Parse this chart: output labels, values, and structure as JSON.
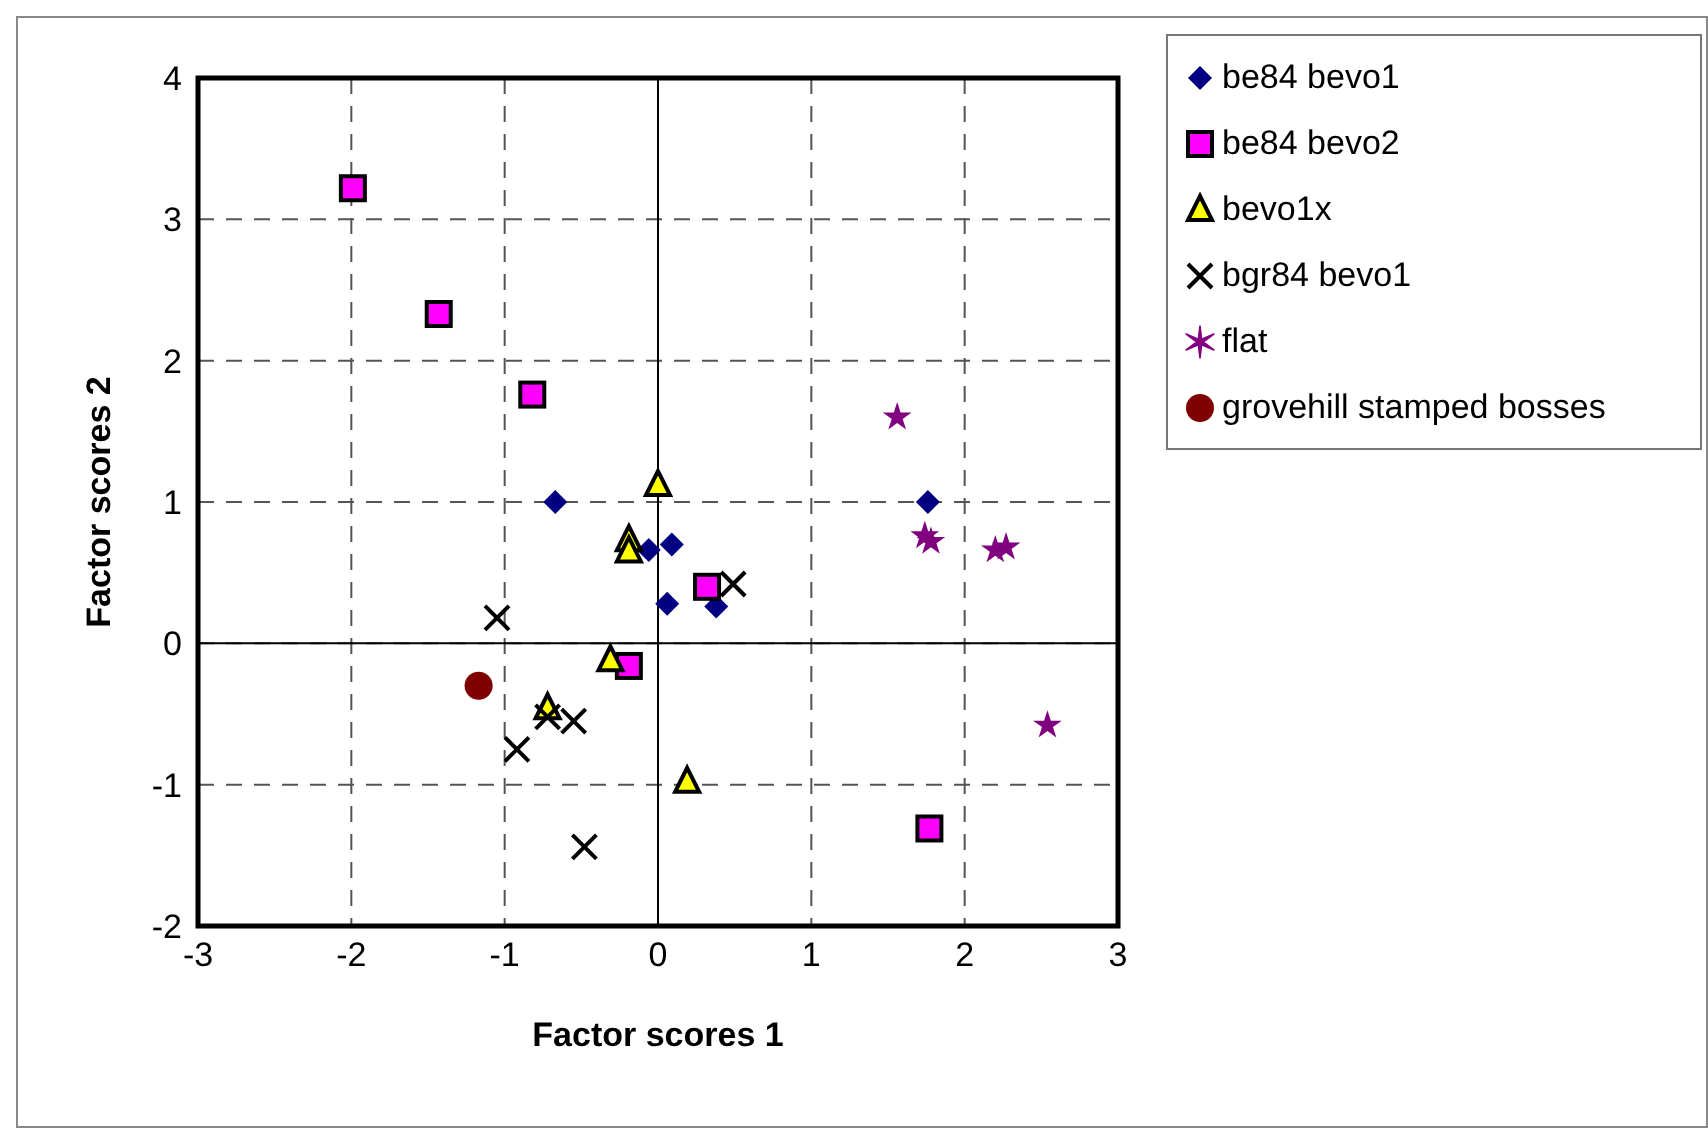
{
  "chart_data": {
    "type": "scatter",
    "xlabel": "Factor scores 1",
    "ylabel": "Factor scores 2",
    "xlim": [
      -3,
      3
    ],
    "ylim": [
      -2,
      4
    ],
    "xticks": [
      -3,
      -2,
      -1,
      0,
      1,
      2,
      3
    ],
    "yticks": [
      -2,
      -1,
      0,
      1,
      2,
      3,
      4
    ],
    "grid": true,
    "legend": "top right",
    "series": [
      {
        "name": "be84 bevo1",
        "color": "#000080",
        "marker": "diamond",
        "x": [
          -0.67,
          1.76,
          -0.06,
          0.09,
          0.06,
          0.38
        ],
        "values": [
          1.0,
          1.0,
          0.66,
          0.7,
          0.28,
          0.26
        ]
      },
      {
        "name": "be84 bevo2",
        "color": "#ff00ff",
        "marker": "square",
        "x": [
          -1.99,
          -1.43,
          -0.82,
          0.32,
          -0.19,
          1.77
        ],
        "values": [
          3.22,
          2.33,
          1.76,
          0.4,
          -0.16,
          -1.31
        ]
      },
      {
        "name": "bevo1x",
        "color": "#ffff00",
        "marker": "triangle",
        "x": [
          0.0,
          -0.19,
          -0.19,
          -0.31,
          -0.72,
          0.19
        ],
        "values": [
          1.12,
          0.73,
          0.65,
          -0.12,
          -0.46,
          -0.98
        ]
      },
      {
        "name": "bgr84 bevo1",
        "color": "#000000",
        "marker": "cross",
        "x": [
          -1.05,
          0.49,
          -0.92,
          -0.72,
          -0.55,
          -0.48
        ],
        "values": [
          0.18,
          0.42,
          -0.75,
          -0.52,
          -0.55,
          -1.44
        ]
      },
      {
        "name": "flat",
        "color": "#800080",
        "marker": "star",
        "x": [
          1.56,
          1.74,
          1.78,
          2.2,
          2.27,
          2.54
        ],
        "values": [
          1.6,
          0.76,
          0.72,
          0.66,
          0.68,
          -0.58
        ]
      },
      {
        "name": "grovehill stamped bosses",
        "color": "#800000",
        "marker": "circle",
        "x": [
          -1.17
        ],
        "values": [
          -0.3
        ]
      }
    ]
  }
}
